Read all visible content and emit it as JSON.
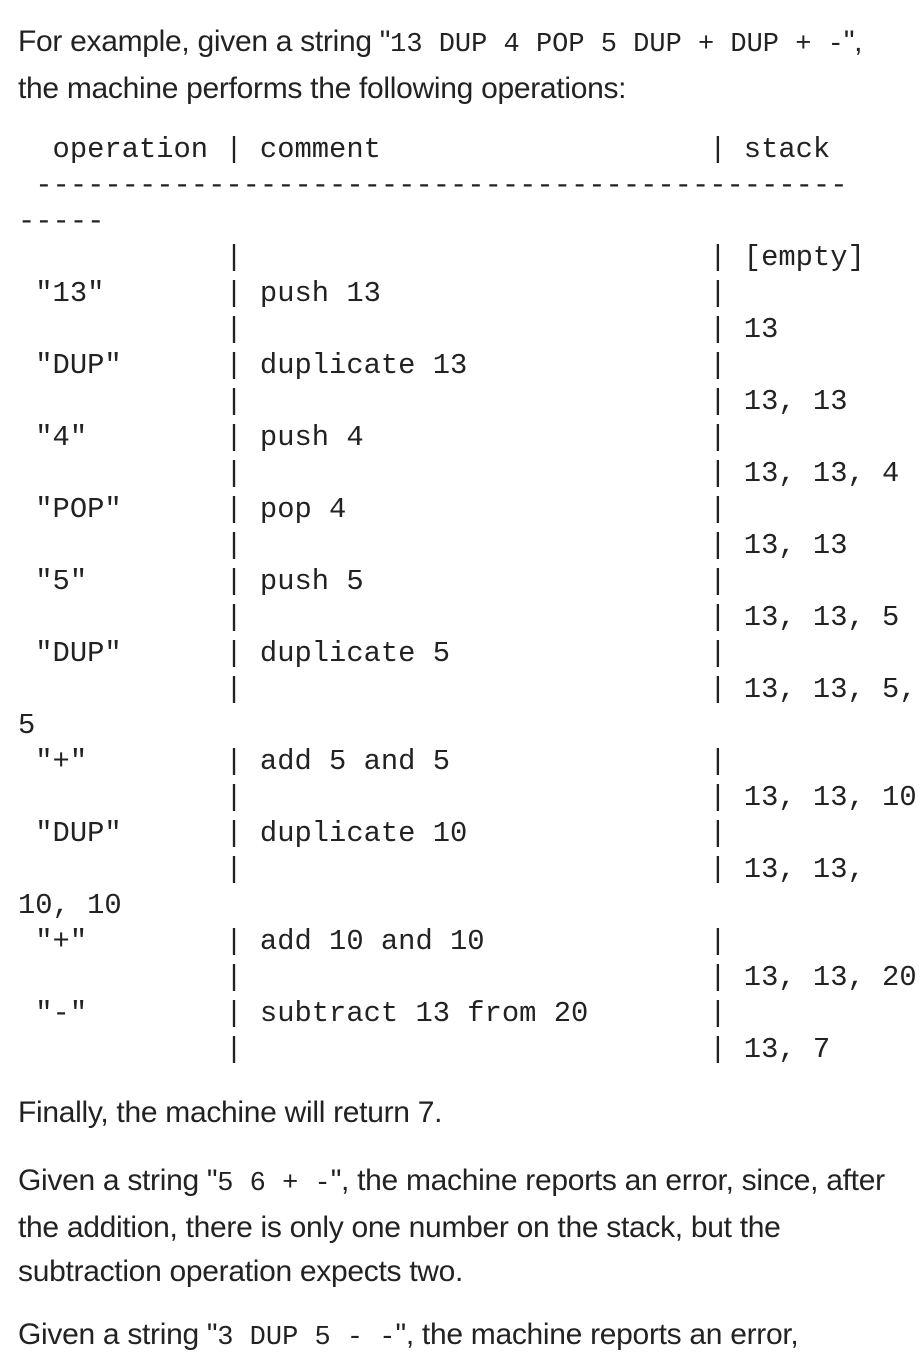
{
  "intro": {
    "before": "For example, given a string \"",
    "code": "13 DUP 4 POP 5 DUP + DUP + -",
    "after": "\", the machine performs the following operations:"
  },
  "trace_text": "  operation | comment                   | stack\n -----------------------------------------------\n-----\n            |                           | [empty]\n \"13\"       | push 13                   |\n            |                           | 13\n \"DUP\"      | duplicate 13              |\n            |                           | 13, 13\n \"4\"        | push 4                    |\n            |                           | 13, 13, 4\n \"POP\"      | pop 4                     |\n            |                           | 13, 13\n \"5\"        | push 5                    |\n            |                           | 13, 13, 5\n \"DUP\"      | duplicate 5               |\n            |                           | 13, 13, 5,\n5\n \"+\"        | add 5 and 5               |\n            |                           | 13, 13, 10\n \"DUP\"      | duplicate 10              |\n            |                           | 13, 13,\n10, 10\n \"+\"        | add 10 and 10             |\n            |                           | 13, 13, 20\n \"-\"        | subtract 13 from 20       |\n            |                           | 13, 7",
  "final": "Finally, the machine will return 7.",
  "error1": {
    "before": "Given a string \"",
    "code": "5 6 + -",
    "after": "\", the machine reports an error, since, after the addition, there is only one number on the stack, but the subtraction operation expects two."
  },
  "error2": {
    "before": "Given a string \"",
    "code": "3 DUP 5 - -",
    "after": "\", the machine reports an error,"
  }
}
